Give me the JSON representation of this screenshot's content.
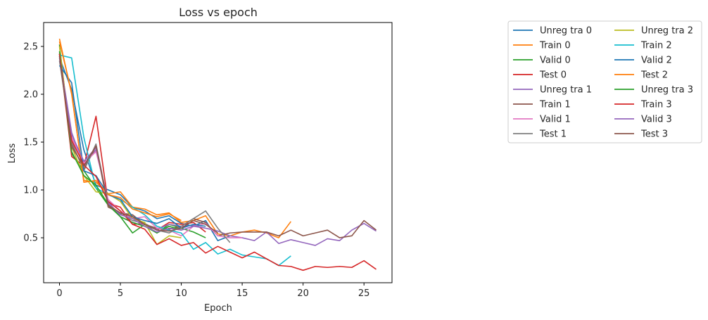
{
  "chart_data": {
    "type": "line",
    "title": "Loss vs epoch",
    "xlabel": "Epoch",
    "ylabel": "Loss",
    "xlim": [
      -1.3,
      27.3
    ],
    "ylim": [
      0.03,
      2.75
    ],
    "xticks": [
      0,
      5,
      10,
      15,
      20,
      25
    ],
    "yticks": [
      0.5,
      1.0,
      1.5,
      2.0,
      2.5
    ],
    "xtick_labels": [
      "0",
      "5",
      "10",
      "15",
      "20",
      "25"
    ],
    "ytick_labels": [
      "0.5",
      "1.0",
      "1.5",
      "2.0",
      "2.5"
    ],
    "grid": false,
    "legend": {
      "placement": "outside-right",
      "columns": 2
    },
    "series": [
      {
        "name": "Unreg tra 0",
        "color": "#1f77b4",
        "x": [
          0,
          1,
          2,
          3,
          4,
          5,
          6,
          7,
          8,
          9,
          10,
          11,
          12,
          13,
          14
        ],
        "y": [
          2.38,
          2.05,
          1.42,
          1.05,
          1.0,
          0.95,
          0.82,
          0.78,
          0.7,
          0.73,
          0.65,
          0.62,
          0.68,
          0.47,
          0.52
        ]
      },
      {
        "name": "Train 0",
        "color": "#ff7f0e",
        "x": [
          0,
          1,
          2,
          3,
          4,
          5,
          6,
          7,
          8,
          9,
          10,
          11,
          12,
          13,
          14,
          15,
          16,
          17,
          18,
          19
        ],
        "y": [
          2.58,
          2.0,
          1.1,
          1.08,
          0.96,
          0.98,
          0.82,
          0.8,
          0.74,
          0.76,
          0.66,
          0.68,
          0.73,
          0.54,
          0.52,
          0.56,
          0.58,
          0.55,
          0.5,
          0.67
        ]
      },
      {
        "name": "Valid 0",
        "color": "#2ca02c",
        "x": [
          0,
          1,
          2,
          3,
          4,
          5,
          6,
          7,
          8,
          9,
          10,
          11,
          12
        ],
        "y": [
          2.52,
          1.38,
          1.2,
          1.02,
          0.84,
          0.72,
          0.55,
          0.64,
          0.55,
          0.64,
          0.6,
          0.56,
          0.5
        ]
      },
      {
        "name": "Test 0",
        "color": "#d62728",
        "x": [
          0,
          1,
          2,
          3,
          4,
          5,
          6,
          7,
          8,
          9,
          10,
          11,
          12
        ],
        "y": [
          2.43,
          1.35,
          1.25,
          1.77,
          0.86,
          0.82,
          0.64,
          0.65,
          0.58,
          0.66,
          0.64,
          0.66,
          0.56
        ]
      },
      {
        "name": "Unreg tra 1",
        "color": "#9467bd",
        "x": [
          0,
          1,
          2,
          3,
          4,
          5,
          6,
          7,
          8,
          9,
          10,
          11,
          12,
          13,
          14,
          15,
          16,
          17,
          18,
          19,
          20,
          21,
          22,
          23,
          24,
          25,
          26
        ],
        "y": [
          2.4,
          1.6,
          1.25,
          1.42,
          0.88,
          0.72,
          0.66,
          0.62,
          0.59,
          0.64,
          0.62,
          0.63,
          0.6,
          0.57,
          0.52,
          0.5,
          0.47,
          0.56,
          0.44,
          0.48,
          0.45,
          0.42,
          0.49,
          0.47,
          0.58,
          0.65,
          0.57
        ]
      },
      {
        "name": "Train 1",
        "color": "#8c564b",
        "x": [
          0,
          1,
          2,
          3,
          4,
          5,
          6,
          7,
          8,
          9,
          10,
          11,
          12,
          13,
          14,
          15,
          16,
          17,
          18,
          19,
          20,
          21,
          22,
          23,
          24,
          25,
          26
        ],
        "y": [
          2.42,
          1.48,
          1.22,
          1.45,
          0.82,
          0.76,
          0.74,
          0.64,
          0.6,
          0.59,
          0.62,
          0.7,
          0.66,
          0.52,
          0.55,
          0.56,
          0.56,
          0.56,
          0.52,
          0.58,
          0.52,
          0.55,
          0.58,
          0.5,
          0.52,
          0.68,
          0.58
        ]
      },
      {
        "name": "Valid 1",
        "color": "#e377c2",
        "x": [
          0,
          1,
          2,
          3,
          4,
          5,
          6,
          7,
          8,
          9,
          10,
          11,
          12,
          13,
          14,
          15
        ],
        "y": [
          2.4,
          1.55,
          1.28,
          1.4,
          0.9,
          0.78,
          0.7,
          0.72,
          0.6,
          0.58,
          0.52,
          0.62,
          0.65,
          0.52,
          0.5,
          0.5
        ]
      },
      {
        "name": "Test 1",
        "color": "#7f7f7f",
        "x": [
          0,
          1,
          2,
          3,
          4,
          5,
          6,
          7,
          8,
          9,
          10,
          11,
          12,
          13,
          14
        ],
        "y": [
          2.35,
          1.5,
          1.2,
          1.48,
          0.85,
          0.75,
          0.68,
          0.65,
          0.58,
          0.55,
          0.62,
          0.7,
          0.78,
          0.6,
          0.45
        ]
      },
      {
        "name": "Unreg tra 2",
        "color": "#bcbd22",
        "x": [
          0,
          1,
          2,
          3,
          4,
          5,
          6,
          7,
          8,
          9,
          10
        ],
        "y": [
          2.5,
          1.45,
          1.15,
          0.98,
          0.96,
          0.88,
          0.7,
          0.66,
          0.43,
          0.52,
          0.5
        ]
      },
      {
        "name": "Train 2",
        "color": "#17becf",
        "x": [
          0,
          1,
          2,
          3,
          4,
          5,
          6,
          7,
          8,
          9,
          10,
          11,
          12,
          13,
          14,
          15,
          16,
          17,
          18,
          19
        ],
        "y": [
          2.41,
          2.38,
          1.55,
          1.02,
          0.95,
          0.9,
          0.82,
          0.74,
          0.62,
          0.58,
          0.55,
          0.38,
          0.45,
          0.33,
          0.38,
          0.32,
          0.3,
          0.28,
          0.21,
          0.31
        ]
      },
      {
        "name": "Valid 2",
        "color": "#1f77b4",
        "x": [
          0,
          1,
          2,
          3,
          4,
          5,
          6,
          7,
          8,
          9,
          10,
          11,
          12
        ],
        "y": [
          2.3,
          2.12,
          1.2,
          1.15,
          0.95,
          0.9,
          0.72,
          0.68,
          0.65,
          0.7,
          0.6,
          0.64,
          0.62
        ]
      },
      {
        "name": "Test 2",
        "color": "#ff7f0e",
        "x": [
          0,
          1,
          2,
          3,
          4,
          5,
          6,
          7,
          8,
          9,
          10
        ],
        "y": [
          2.55,
          2.02,
          1.08,
          1.1,
          0.95,
          0.92,
          0.8,
          0.76,
          0.72,
          0.75,
          0.68
        ]
      },
      {
        "name": "Unreg tra 3",
        "color": "#2ca02c",
        "x": [
          0,
          1,
          2,
          3,
          4,
          5,
          6,
          7,
          8,
          9,
          10
        ],
        "y": [
          2.45,
          1.4,
          1.15,
          1.05,
          0.85,
          0.72,
          0.66,
          0.62,
          0.55,
          0.62,
          0.58
        ]
      },
      {
        "name": "Train 3",
        "color": "#d62728",
        "x": [
          0,
          1,
          2,
          3,
          4,
          5,
          6,
          7,
          8,
          9,
          10,
          11,
          12,
          13,
          14,
          15,
          16,
          17,
          18,
          19,
          20,
          21,
          22,
          23,
          24,
          25,
          26
        ],
        "y": [
          2.42,
          1.52,
          1.26,
          1.14,
          0.88,
          0.78,
          0.64,
          0.59,
          0.43,
          0.49,
          0.42,
          0.45,
          0.34,
          0.41,
          0.35,
          0.29,
          0.35,
          0.28,
          0.21,
          0.2,
          0.16,
          0.2,
          0.19,
          0.2,
          0.19,
          0.26,
          0.17
        ]
      },
      {
        "name": "Valid 3",
        "color": "#9467bd",
        "x": [
          0,
          1,
          2,
          3,
          4,
          5,
          6,
          7,
          8,
          9,
          10,
          11,
          12
        ],
        "y": [
          2.38,
          1.58,
          1.3,
          1.44,
          0.86,
          0.74,
          0.7,
          0.62,
          0.56,
          0.6,
          0.58,
          0.62,
          0.6
        ]
      },
      {
        "name": "Test 3",
        "color": "#8c564b",
        "x": [
          0,
          1,
          2,
          3,
          4,
          5,
          6,
          7,
          8,
          9,
          10,
          11,
          12,
          13
        ],
        "y": [
          2.4,
          1.45,
          1.25,
          1.46,
          0.84,
          0.76,
          0.72,
          0.64,
          0.58,
          0.57,
          0.6,
          0.68,
          0.64,
          0.55
        ]
      }
    ]
  }
}
